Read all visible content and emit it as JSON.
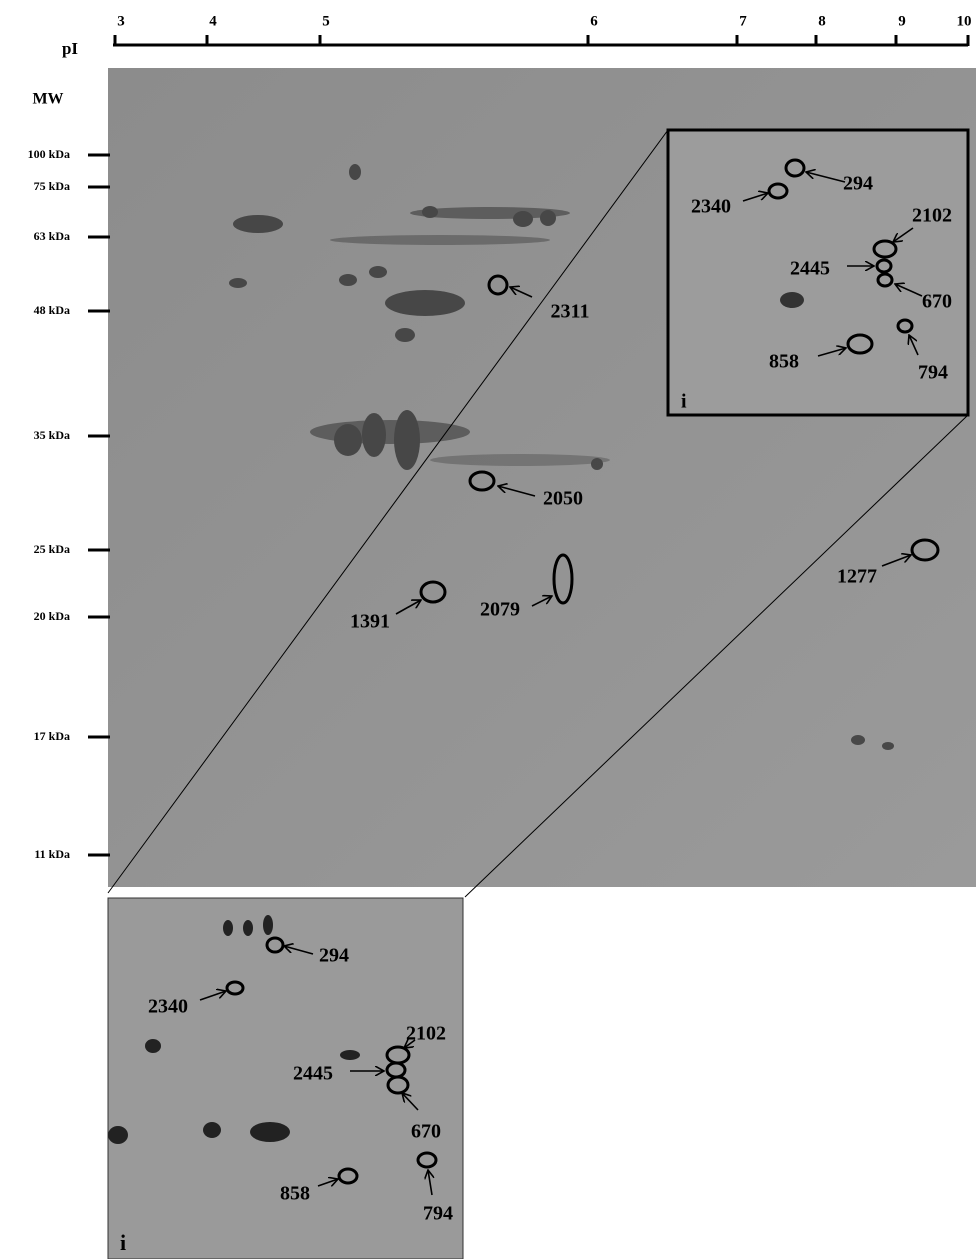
{
  "top_axis": {
    "label": "pI",
    "ticks": [
      "3",
      "4",
      "5",
      "6",
      "7",
      "8",
      "9",
      "10"
    ]
  },
  "left_axis": {
    "label": "MW",
    "ticks": [
      "100 kDa",
      "75 kDa",
      "63 kDa",
      "48 kDa",
      "35 kDa",
      "25 kDa",
      "20 kDa",
      "17 kDa",
      "11 kDa"
    ]
  },
  "main_spots": [
    "2311",
    "2050",
    "1391",
    "2079",
    "1277"
  ],
  "inset": {
    "label": "i",
    "spots": [
      "294",
      "2340",
      "2102",
      "2445",
      "670",
      "858",
      "794"
    ]
  },
  "zoom": {
    "label": "i",
    "spots": [
      "294",
      "2340",
      "2102",
      "2445",
      "670",
      "858",
      "794"
    ]
  }
}
